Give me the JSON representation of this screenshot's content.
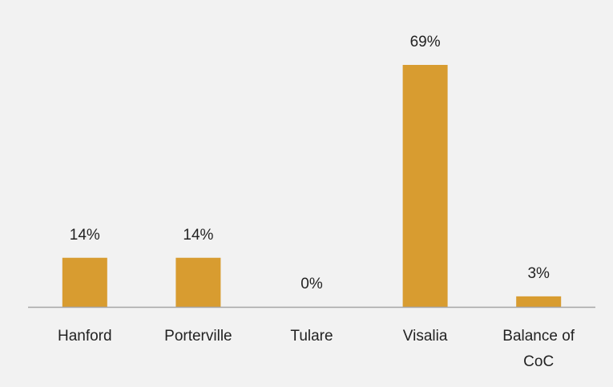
{
  "chart_data": {
    "type": "bar",
    "categories": [
      "Hanford",
      "Porterville",
      "Tulare",
      "Visalia",
      "Balance of CoC"
    ],
    "values": [
      14,
      14,
      0,
      69,
      3
    ],
    "value_labels": [
      "14%",
      "14%",
      "0%",
      "69%",
      "3%"
    ],
    "color": "#d89c30"
  }
}
